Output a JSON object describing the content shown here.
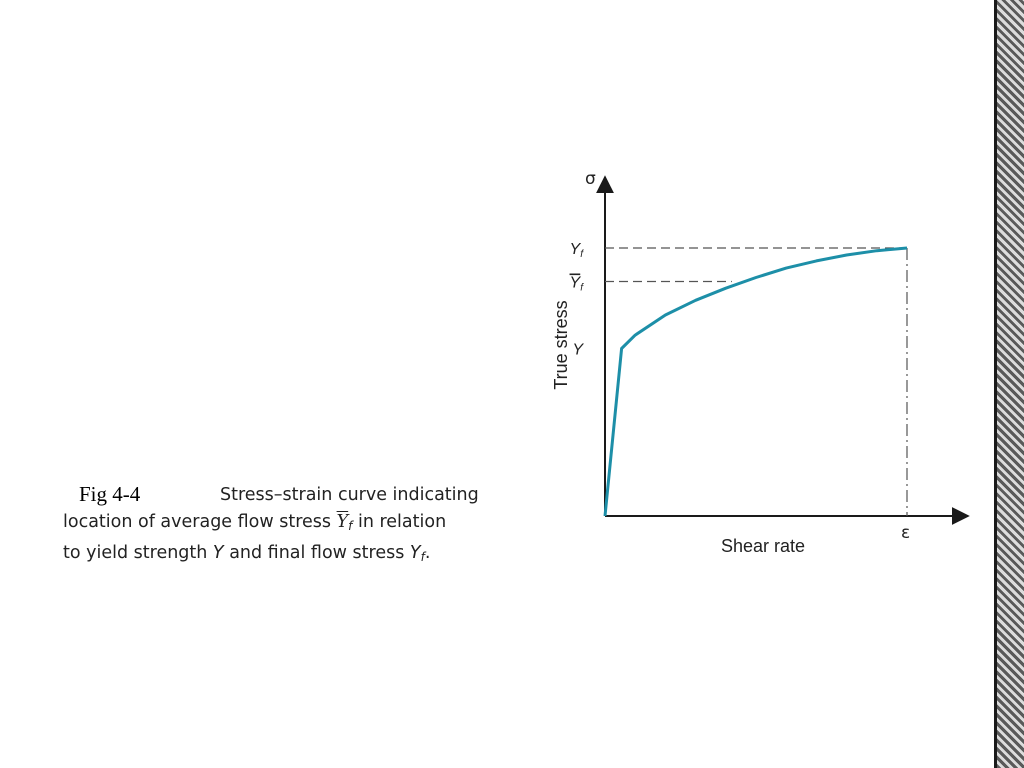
{
  "slide": {
    "fig_label": "Fig 4-4",
    "caption": {
      "line1": "Stress–strain curve indicating",
      "line2_pre": "location of average flow stress ",
      "line2_sym": "Y",
      "line2_sub": "f",
      "line2_post": " in relation",
      "line3_pre": "to yield strength ",
      "line3_y": "Y",
      "line3_mid": " and final flow stress ",
      "line3_yf": "Y",
      "line3_sub": "f",
      "line3_end": "."
    }
  },
  "chart_data": {
    "type": "line",
    "title": "",
    "xlabel": "Shear rate",
    "ylabel": "True stress",
    "x_axis_symbol": "σ",
    "x_end_symbol": "ε",
    "y_ticks": [
      {
        "label": "Y",
        "sub": "f",
        "overline": false,
        "value": 1.0
      },
      {
        "label": "Y",
        "sub": "f",
        "overline": true,
        "value": 0.875
      },
      {
        "label": "Y",
        "sub": "",
        "overline": false,
        "value": 0.625
      }
    ],
    "xlim": [
      0,
      1
    ],
    "ylim": [
      0,
      1.25
    ],
    "series": [
      {
        "color": "#1d8fa8",
        "x": [
          0,
          0.055,
          0.1,
          0.2,
          0.3,
          0.4,
          0.5,
          0.6,
          0.7,
          0.8,
          0.9,
          1.0
        ],
        "y": [
          0,
          0.625,
          0.675,
          0.75,
          0.805,
          0.85,
          0.89,
          0.925,
          0.952,
          0.974,
          0.99,
          1.0
        ]
      }
    ],
    "guides": [
      {
        "kind": "hline",
        "value": 1.0,
        "to_x": 1.0
      },
      {
        "kind": "hline",
        "value": 0.875,
        "to_x": 0.42
      },
      {
        "kind": "vline",
        "value": 1.0
      }
    ],
    "grid": false,
    "legend": "none"
  }
}
